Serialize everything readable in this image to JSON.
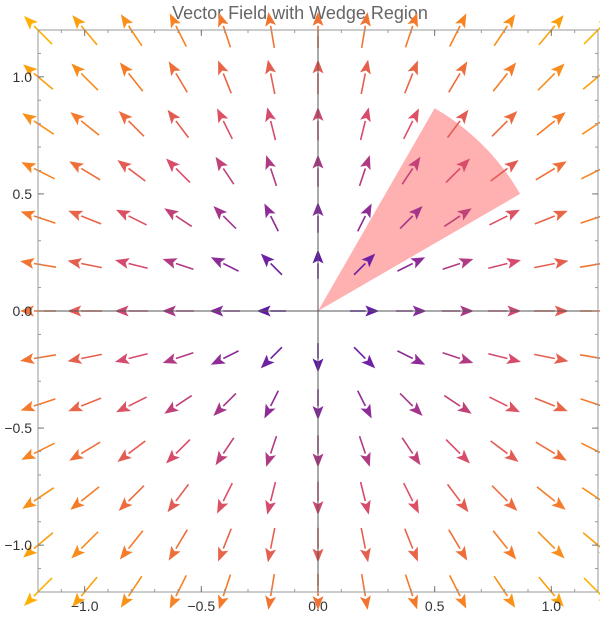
{
  "chart_data": {
    "type": "vector_field",
    "title": "Vector Field with Wedge Region",
    "field": "radial outward, (x, y)",
    "xlim": [
      -1.2,
      1.2
    ],
    "ylim": [
      -1.2,
      1.2
    ],
    "grid_x": [
      -1.2,
      -1.0,
      -0.8,
      -0.6,
      -0.4,
      -0.2,
      0.0,
      0.2,
      0.4,
      0.6,
      0.8,
      1.0,
      1.2
    ],
    "grid_y": [
      -1.2,
      -1.0,
      -0.8,
      -0.6,
      -0.4,
      -0.2,
      0.0,
      0.2,
      0.4,
      0.6,
      0.8,
      1.0,
      1.2
    ],
    "xticks": [
      -1.0,
      -0.5,
      0.0,
      0.5,
      1.0
    ],
    "yticks": [
      -1.0,
      -0.5,
      0.0,
      0.5,
      1.0
    ],
    "xtick_labels": [
      "−1.0",
      "−0.5",
      "0.0",
      "0.5",
      "1.0"
    ],
    "ytick_labels": [
      "−1.0",
      "−0.5",
      "0.0",
      "0.5",
      "1.0"
    ],
    "color_scale": [
      "#3a10b5",
      "#8a2a9a",
      "#d94c6a",
      "#f57a2a",
      "#ffb000"
    ],
    "region": {
      "shape": "wedge",
      "r_max": 1.0,
      "theta_min_deg": 30,
      "theta_max_deg": 60,
      "color": "#ffb0b0"
    },
    "grid": false,
    "axes_at_origin": true
  }
}
